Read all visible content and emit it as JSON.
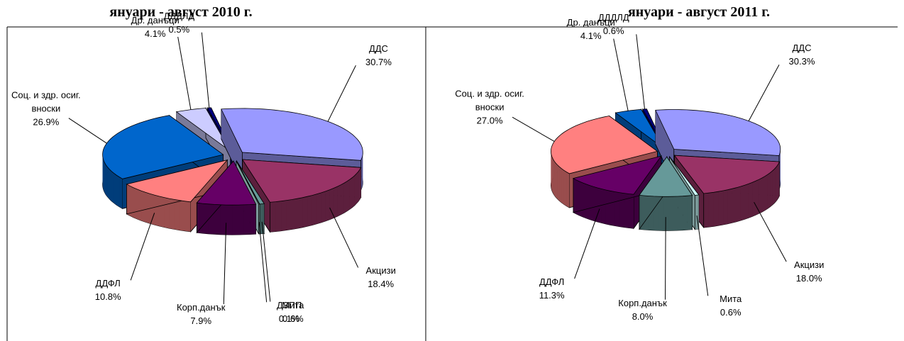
{
  "chart_data": [
    {
      "type": "pie",
      "title": "януари - август 2010 г.",
      "categories": [
        "ДДС",
        "Акцизи",
        "Мита",
        "ДЗПП",
        "Корп.данък",
        "ДДФЛ",
        "Соц. и здр. осиг. вноски",
        "Др. данъци",
        "ДДДЛД"
      ],
      "values": [
        30.7,
        18.4,
        0.6,
        0.1,
        7.9,
        10.8,
        26.9,
        4.1,
        0.5
      ],
      "value_labels": [
        "30.7%",
        "18.4%",
        "0.6%",
        "0.1%",
        "7.9%",
        "10.8%",
        "26.9%",
        "4.1%",
        "0.5%"
      ],
      "colors": [
        "#9999ff",
        "#993366",
        "#669999",
        "#ccffff",
        "#660066",
        "#ff8080",
        "#0066cc",
        "#ccccff",
        "#000080"
      ]
    },
    {
      "type": "pie",
      "title": "януари - август 2011 г.",
      "categories": [
        "ДДС",
        "Акцизи",
        "Мита",
        "Корп.данък",
        "ДДФЛ",
        "Соц. и здр. осиг. вноски",
        "Др. данъци",
        "ДДДЛД"
      ],
      "values": [
        30.3,
        18.0,
        0.6,
        8.0,
        11.3,
        27.0,
        4.1,
        0.6
      ],
      "value_labels": [
        "30.3%",
        "18.0%",
        "0.6%",
        "8.0%",
        "11.3%",
        "27.0%",
        "4.1%",
        "0.6%"
      ],
      "colors": [
        "#9999ff",
        "#993366",
        "#ccffff",
        "#669999",
        "#660066",
        "#ff8080",
        "#0066cc",
        "#000080"
      ]
    }
  ]
}
